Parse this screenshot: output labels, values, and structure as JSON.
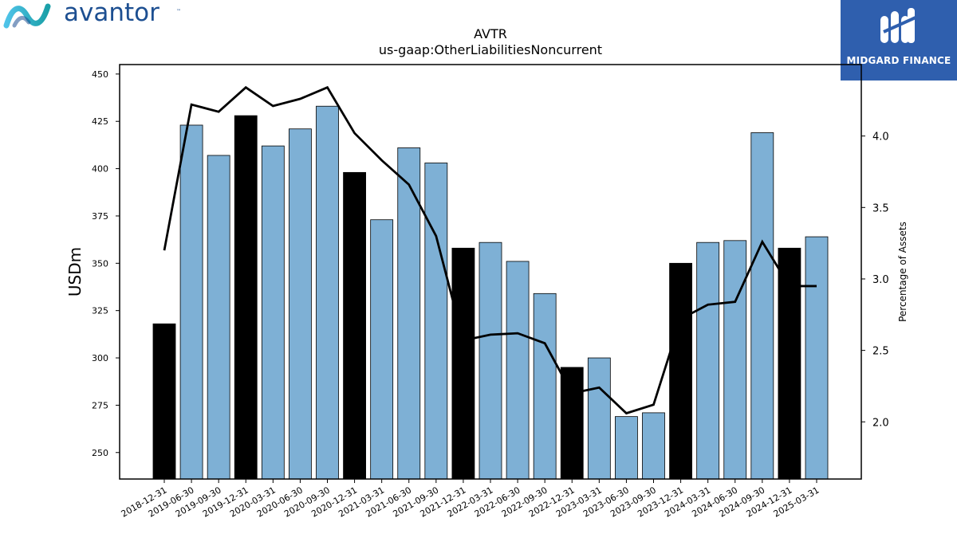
{
  "branding": {
    "left_logo_text": "avantor",
    "left_logo_tm": "™",
    "right_logo_text": "MIDGARD FINANCE"
  },
  "chart_data": {
    "type": "bar",
    "title": "AVTR",
    "subtitle": "us-gaap:OtherLiabilitiesNoncurrent",
    "ylabel": "USDm",
    "y2label": "Percentage of Assets",
    "ylim": [
      236,
      455
    ],
    "y2lim": [
      1.6,
      4.5
    ],
    "yticks": [
      250,
      275,
      300,
      325,
      350,
      375,
      400,
      425,
      450
    ],
    "y2ticks": [
      2.0,
      2.5,
      3.0,
      3.5,
      4.0
    ],
    "categories": [
      "2018-12-31",
      "2019-06-30",
      "2019-09-30",
      "2019-12-31",
      "2020-03-31",
      "2020-06-30",
      "2020-09-30",
      "2020-12-31",
      "2021-03-31",
      "2021-06-30",
      "2021-09-30",
      "2021-12-31",
      "2022-03-31",
      "2022-06-30",
      "2022-09-30",
      "2022-12-31",
      "2023-03-31",
      "2023-06-30",
      "2023-09-30",
      "2023-12-31",
      "2024-03-31",
      "2024-06-30",
      "2024-09-30",
      "2024-12-31",
      "2025-03-31"
    ],
    "series": [
      {
        "kind": "bar",
        "values": [
          318,
          423,
          407,
          428,
          412,
          421,
          433,
          398,
          373,
          411,
          403,
          358,
          361,
          351,
          334,
          295,
          300,
          269,
          271,
          350,
          361,
          362,
          419,
          358,
          364
        ]
      },
      {
        "kind": "line",
        "axis": "right",
        "values": [
          3.2,
          4.22,
          4.17,
          4.34,
          4.21,
          4.26,
          4.34,
          4.02,
          3.83,
          3.66,
          3.3,
          2.57,
          2.61,
          2.62,
          2.55,
          2.2,
          2.24,
          2.06,
          2.12,
          2.72,
          2.82,
          2.84,
          3.26,
          2.95,
          2.95
        ]
      }
    ],
    "year_end_color": "#000000",
    "quarter_color": "#7eb0d5",
    "line_color": "#000000",
    "grid": false
  }
}
